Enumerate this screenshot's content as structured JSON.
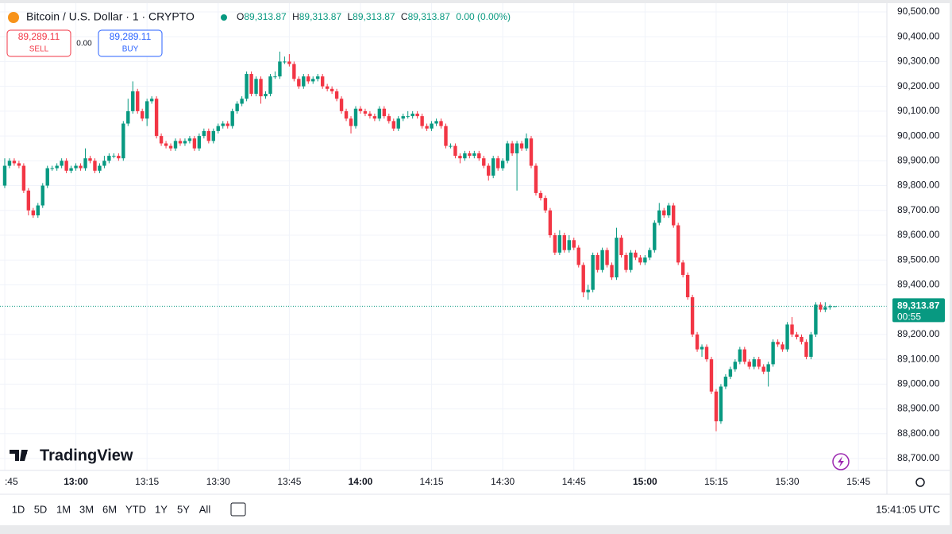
{
  "header": {
    "symbol": "Bitcoin / U.S. Dollar · 1 · CRYPTO",
    "o_label": "O",
    "o": "89,313.87",
    "h_label": "H",
    "h": "89,313.87",
    "l_label": "L",
    "l": "89,313.87",
    "c_label": "C",
    "c": "89,313.87",
    "change": "0.00 (0.00%)"
  },
  "trade": {
    "sell_price": "89,289.11",
    "sell": "SELL",
    "spread": "0.00",
    "buy_price": "89,289.11",
    "buy": "BUY"
  },
  "chart_data": {
    "type": "candlestick",
    "up_color": "#089981",
    "down_color": "#f23645",
    "candles": [
      [
        "12:45",
        89800,
        89910,
        89790,
        89880
      ],
      [
        "12:46",
        89880,
        89910,
        89870,
        89900
      ],
      [
        "12:47",
        89900,
        89910,
        89880,
        89890
      ],
      [
        "12:48",
        89890,
        89900,
        89870,
        89880
      ],
      [
        "12:49",
        89880,
        89890,
        89770,
        89780
      ],
      [
        "12:50",
        89780,
        89790,
        89680,
        89700
      ],
      [
        "12:51",
        89700,
        89710,
        89670,
        89680
      ],
      [
        "12:52",
        89680,
        89730,
        89670,
        89720
      ],
      [
        "12:53",
        89720,
        89810,
        89710,
        89800
      ],
      [
        "12:54",
        89800,
        89880,
        89790,
        89870
      ],
      [
        "12:55",
        89870,
        89880,
        89860,
        89870
      ],
      [
        "12:56",
        89870,
        89890,
        89860,
        89880
      ],
      [
        "12:57",
        89880,
        89910,
        89870,
        89900
      ],
      [
        "12:58",
        89900,
        89910,
        89850,
        89860
      ],
      [
        "12:59",
        89860,
        89880,
        89850,
        89870
      ],
      [
        "13:00",
        89870,
        89890,
        89860,
        89880
      ],
      [
        "13:01",
        89880,
        89890,
        89860,
        89870
      ],
      [
        "13:02",
        89870,
        89950,
        89860,
        89910
      ],
      [
        "13:03",
        89910,
        89920,
        89890,
        89900
      ],
      [
        "13:04",
        89900,
        89910,
        89850,
        89860
      ],
      [
        "13:05",
        89860,
        89890,
        89850,
        89880
      ],
      [
        "13:06",
        89880,
        89920,
        89870,
        89900
      ],
      [
        "13:07",
        89900,
        89930,
        89890,
        89920
      ],
      [
        "13:08",
        89920,
        89930,
        89910,
        89920
      ],
      [
        "13:09",
        89920,
        89930,
        89900,
        89910
      ],
      [
        "13:10",
        89910,
        90060,
        89900,
        90050
      ],
      [
        "13:11",
        90050,
        90150,
        90040,
        90100
      ],
      [
        "13:12",
        90100,
        90220,
        90090,
        90180
      ],
      [
        "13:13",
        90180,
        90190,
        90090,
        90100
      ],
      [
        "13:14",
        90100,
        90110,
        90060,
        90070
      ],
      [
        "13:15",
        90070,
        90150,
        90040,
        90140
      ],
      [
        "13:16",
        90140,
        90160,
        90130,
        90150
      ],
      [
        "13:17",
        90150,
        90160,
        89990,
        90000
      ],
      [
        "13:18",
        90000,
        90010,
        89960,
        89970
      ],
      [
        "13:19",
        89970,
        89980,
        89950,
        89960
      ],
      [
        "13:20",
        89960,
        89970,
        89940,
        89950
      ],
      [
        "13:21",
        89950,
        89990,
        89940,
        89980
      ],
      [
        "13:22",
        89980,
        89990,
        89960,
        89970
      ],
      [
        "13:23",
        89970,
        89990,
        89960,
        89980
      ],
      [
        "13:24",
        89980,
        90000,
        89970,
        89990
      ],
      [
        "13:25",
        89990,
        90000,
        89940,
        89950
      ],
      [
        "13:26",
        89950,
        90010,
        89940,
        90000
      ],
      [
        "13:27",
        90000,
        90030,
        89990,
        90020
      ],
      [
        "13:28",
        90020,
        90030,
        89970,
        89980
      ],
      [
        "13:29",
        89980,
        90030,
        89970,
        90020
      ],
      [
        "13:30",
        90020,
        90050,
        90010,
        90040
      ],
      [
        "13:31",
        90040,
        90060,
        90030,
        90050
      ],
      [
        "13:32",
        90050,
        90060,
        90030,
        90040
      ],
      [
        "13:33",
        90040,
        90110,
        90030,
        90100
      ],
      [
        "13:34",
        90100,
        90140,
        90090,
        90130
      ],
      [
        "13:35",
        90130,
        90160,
        90120,
        90150
      ],
      [
        "13:36",
        90150,
        90260,
        90140,
        90250
      ],
      [
        "13:37",
        90250,
        90260,
        90160,
        90170
      ],
      [
        "13:38",
        90170,
        90240,
        90160,
        90230
      ],
      [
        "13:39",
        90230,
        90240,
        90130,
        90160
      ],
      [
        "13:40",
        90160,
        90180,
        90150,
        90170
      ],
      [
        "13:41",
        90170,
        90250,
        90160,
        90240
      ],
      [
        "13:42",
        90240,
        90260,
        90230,
        90240
      ],
      [
        "13:43",
        90240,
        90340,
        90230,
        90300
      ],
      [
        "13:44",
        90300,
        90320,
        90290,
        90300
      ],
      [
        "13:45",
        90300,
        90330,
        90280,
        90290
      ],
      [
        "13:46",
        90290,
        90300,
        90220,
        90230
      ],
      [
        "13:47",
        90230,
        90240,
        90190,
        90200
      ],
      [
        "13:48",
        90200,
        90250,
        90190,
        90240
      ],
      [
        "13:49",
        90240,
        90250,
        90210,
        90220
      ],
      [
        "13:50",
        90220,
        90240,
        90210,
        90230
      ],
      [
        "13:51",
        90230,
        90250,
        90220,
        90240
      ],
      [
        "13:52",
        90240,
        90250,
        90190,
        90200
      ],
      [
        "13:53",
        90200,
        90210,
        90180,
        90190
      ],
      [
        "13:54",
        90190,
        90200,
        90170,
        90180
      ],
      [
        "13:55",
        90180,
        90190,
        90140,
        90150
      ],
      [
        "13:56",
        90150,
        90160,
        90090,
        90100
      ],
      [
        "13:57",
        90100,
        90110,
        90060,
        90070
      ],
      [
        "13:58",
        90070,
        90080,
        90010,
        90040
      ],
      [
        "13:59",
        90040,
        90120,
        90030,
        90110
      ],
      [
        "14:00",
        90110,
        90120,
        90090,
        90100
      ],
      [
        "14:01",
        90100,
        90110,
        90080,
        90090
      ],
      [
        "14:02",
        90090,
        90100,
        90070,
        90080
      ],
      [
        "14:03",
        90080,
        90090,
        90060,
        90070
      ],
      [
        "14:04",
        90070,
        90120,
        90060,
        90110
      ],
      [
        "14:05",
        90110,
        90120,
        90070,
        90080
      ],
      [
        "14:06",
        90080,
        90090,
        90050,
        90060
      ],
      [
        "14:07",
        90060,
        90070,
        90020,
        90030
      ],
      [
        "14:08",
        90030,
        90080,
        90020,
        90070
      ],
      [
        "14:09",
        90070,
        90090,
        90060,
        90080
      ],
      [
        "14:10",
        90080,
        90100,
        90070,
        90080
      ],
      [
        "14:11",
        90080,
        90100,
        90070,
        90090
      ],
      [
        "14:12",
        90090,
        90100,
        90070,
        90080
      ],
      [
        "14:13",
        90080,
        90090,
        90030,
        90040
      ],
      [
        "14:14",
        90040,
        90050,
        90020,
        90030
      ],
      [
        "14:15",
        90030,
        90060,
        90020,
        90050
      ],
      [
        "14:16",
        90050,
        90070,
        90040,
        90060
      ],
      [
        "14:17",
        90060,
        90070,
        90030,
        90040
      ],
      [
        "14:18",
        90040,
        90050,
        89950,
        89960
      ],
      [
        "14:19",
        89960,
        89970,
        89950,
        89960
      ],
      [
        "14:20",
        89960,
        89970,
        89910,
        89920
      ],
      [
        "14:21",
        89920,
        89930,
        89890,
        89910
      ],
      [
        "14:22",
        89910,
        89940,
        89900,
        89930
      ],
      [
        "14:23",
        89930,
        89940,
        89910,
        89920
      ],
      [
        "14:24",
        89920,
        89940,
        89910,
        89930
      ],
      [
        "14:25",
        89930,
        89940,
        89900,
        89910
      ],
      [
        "14:26",
        89910,
        89920,
        89870,
        89880
      ],
      [
        "14:27",
        89880,
        89890,
        89820,
        89840
      ],
      [
        "14:28",
        89840,
        89920,
        89830,
        89910
      ],
      [
        "14:29",
        89910,
        89920,
        89860,
        89870
      ],
      [
        "14:30",
        89870,
        89910,
        89860,
        89900
      ],
      [
        "14:31",
        89900,
        89980,
        89890,
        89970
      ],
      [
        "14:32",
        89970,
        89980,
        89920,
        89930
      ],
      [
        "14:33",
        89930,
        89980,
        89780,
        89970
      ],
      [
        "14:34",
        89970,
        89980,
        89940,
        89950
      ],
      [
        "14:35",
        89950,
        90010,
        89940,
        89990
      ],
      [
        "14:36",
        89990,
        90000,
        89870,
        89880
      ],
      [
        "14:37",
        89880,
        89890,
        89760,
        89770
      ],
      [
        "14:38",
        89770,
        89780,
        89740,
        89750
      ],
      [
        "14:39",
        89750,
        89760,
        89690,
        89700
      ],
      [
        "14:40",
        89700,
        89710,
        89590,
        89600
      ],
      [
        "14:41",
        89600,
        89610,
        89520,
        89530
      ],
      [
        "14:42",
        89530,
        89620,
        89520,
        89600
      ],
      [
        "14:43",
        89600,
        89610,
        89530,
        89540
      ],
      [
        "14:44",
        89540,
        89600,
        89530,
        89580
      ],
      [
        "14:45",
        89580,
        89590,
        89540,
        89550
      ],
      [
        "14:46",
        89550,
        89560,
        89470,
        89480
      ],
      [
        "14:47",
        89480,
        89490,
        89350,
        89370
      ],
      [
        "14:48",
        89370,
        89400,
        89340,
        89380
      ],
      [
        "14:49",
        89380,
        89530,
        89370,
        89520
      ],
      [
        "14:50",
        89520,
        89530,
        89450,
        89460
      ],
      [
        "14:51",
        89460,
        89550,
        89450,
        89540
      ],
      [
        "14:52",
        89540,
        89550,
        89470,
        89480
      ],
      [
        "14:53",
        89480,
        89490,
        89420,
        89430
      ],
      [
        "14:54",
        89430,
        89630,
        89420,
        89590
      ],
      [
        "14:55",
        89590,
        89600,
        89510,
        89520
      ],
      [
        "14:56",
        89520,
        89530,
        89450,
        89460
      ],
      [
        "14:57",
        89460,
        89540,
        89450,
        89530
      ],
      [
        "14:58",
        89530,
        89540,
        89500,
        89510
      ],
      [
        "14:59",
        89510,
        89520,
        89480,
        89490
      ],
      [
        "15:00",
        89490,
        89520,
        89480,
        89510
      ],
      [
        "15:01",
        89510,
        89550,
        89500,
        89540
      ],
      [
        "15:02",
        89540,
        89660,
        89530,
        89650
      ],
      [
        "15:03",
        89650,
        89730,
        89640,
        89700
      ],
      [
        "15:04",
        89700,
        89710,
        89670,
        89680
      ],
      [
        "15:05",
        89680,
        89730,
        89670,
        89720
      ],
      [
        "15:06",
        89720,
        89730,
        89630,
        89640
      ],
      [
        "15:07",
        89640,
        89650,
        89480,
        89490
      ],
      [
        "15:08",
        89490,
        89500,
        89430,
        89440
      ],
      [
        "15:09",
        89440,
        89450,
        89340,
        89350
      ],
      [
        "15:10",
        89350,
        89360,
        89190,
        89200
      ],
      [
        "15:11",
        89200,
        89210,
        89130,
        89140
      ],
      [
        "15:12",
        89140,
        89160,
        89110,
        89150
      ],
      [
        "15:13",
        89150,
        89160,
        89090,
        89100
      ],
      [
        "15:14",
        89100,
        89110,
        88960,
        88970
      ],
      [
        "15:15",
        88970,
        88980,
        88810,
        88850
      ],
      [
        "15:16",
        88850,
        89000,
        88840,
        88990
      ],
      [
        "15:17",
        88990,
        89040,
        88980,
        89030
      ],
      [
        "15:18",
        89030,
        89070,
        89020,
        89060
      ],
      [
        "15:19",
        89060,
        89100,
        89050,
        89090
      ],
      [
        "15:20",
        89090,
        89150,
        89080,
        89140
      ],
      [
        "15:21",
        89140,
        89150,
        89080,
        89090
      ],
      [
        "15:22",
        89090,
        89100,
        89060,
        89070
      ],
      [
        "15:23",
        89070,
        89110,
        89060,
        89100
      ],
      [
        "15:24",
        89100,
        89110,
        89060,
        89070
      ],
      [
        "15:25",
        89070,
        89080,
        89040,
        89050
      ],
      [
        "15:26",
        89050,
        89090,
        88990,
        89080
      ],
      [
        "15:27",
        89080,
        89180,
        89070,
        89170
      ],
      [
        "15:28",
        89170,
        89180,
        89150,
        89160
      ],
      [
        "15:29",
        89160,
        89170,
        89130,
        89140
      ],
      [
        "15:30",
        89140,
        89250,
        89130,
        89240
      ],
      [
        "15:31",
        89240,
        89270,
        89190,
        89200
      ],
      [
        "15:32",
        89200,
        89210,
        89180,
        89190
      ],
      [
        "15:33",
        89190,
        89200,
        89160,
        89170
      ],
      [
        "15:34",
        89170,
        89180,
        89100,
        89110
      ],
      [
        "15:35",
        89110,
        89210,
        89100,
        89200
      ],
      [
        "15:36",
        89200,
        89330,
        89190,
        89320
      ],
      [
        "15:37",
        89320,
        89330,
        89290,
        89300
      ],
      [
        "15:38",
        89300,
        89330,
        89290,
        89310
      ],
      [
        "15:39",
        89310,
        89320,
        89300,
        89313.87
      ],
      [
        "15:40",
        89313.87,
        89313.87,
        89313.87,
        89313.87
      ]
    ],
    "ylim": [
      88652,
      90548
    ],
    "yticks": [
      {
        "value": 88700,
        "label": "88,700.00"
      },
      {
        "value": 88800,
        "label": "88,800.00"
      },
      {
        "value": 88900,
        "label": "88,900.00"
      },
      {
        "value": 89000,
        "label": "89,000.00"
      },
      {
        "value": 89100,
        "label": "89,100.00"
      },
      {
        "value": 89200,
        "label": "89,200.00"
      },
      {
        "value": 89400,
        "label": "89,400.00"
      },
      {
        "value": 89500,
        "label": "89,500.00"
      },
      {
        "value": 89600,
        "label": "89,600.00"
      },
      {
        "value": 89700,
        "label": "89,700.00"
      },
      {
        "value": 89800,
        "label": "89,800.00"
      },
      {
        "value": 89900,
        "label": "89,900.00"
      },
      {
        "value": 90000,
        "label": "90,000.00"
      },
      {
        "value": 90100,
        "label": "90,100.00"
      },
      {
        "value": 90200,
        "label": "90,200.00"
      },
      {
        "value": 90300,
        "label": "90,300.00"
      },
      {
        "value": 90400,
        "label": "90,400.00"
      },
      {
        "value": 90500,
        "label": "90,500.00"
      }
    ],
    "xlim": [
      "12:44",
      "15:51"
    ],
    "xticks": [
      {
        "value": "12:45",
        "label": ":45"
      },
      "13:00",
      "13:15",
      "13:30",
      "13:45",
      "14:00",
      "14:15",
      "14:30",
      "14:45",
      "15:00",
      "15:15",
      "15:30",
      "15:45"
    ],
    "grid": true,
    "last_price": {
      "value": 89313.87,
      "label": "89,313.87"
    },
    "countdown": "00:55"
  },
  "logo": "TradingView",
  "toolbar": {
    "ranges": [
      "1D",
      "5D",
      "1M",
      "3M",
      "6M",
      "YTD",
      "1Y",
      "5Y",
      "All"
    ],
    "time": "15:41:05 UTC"
  }
}
